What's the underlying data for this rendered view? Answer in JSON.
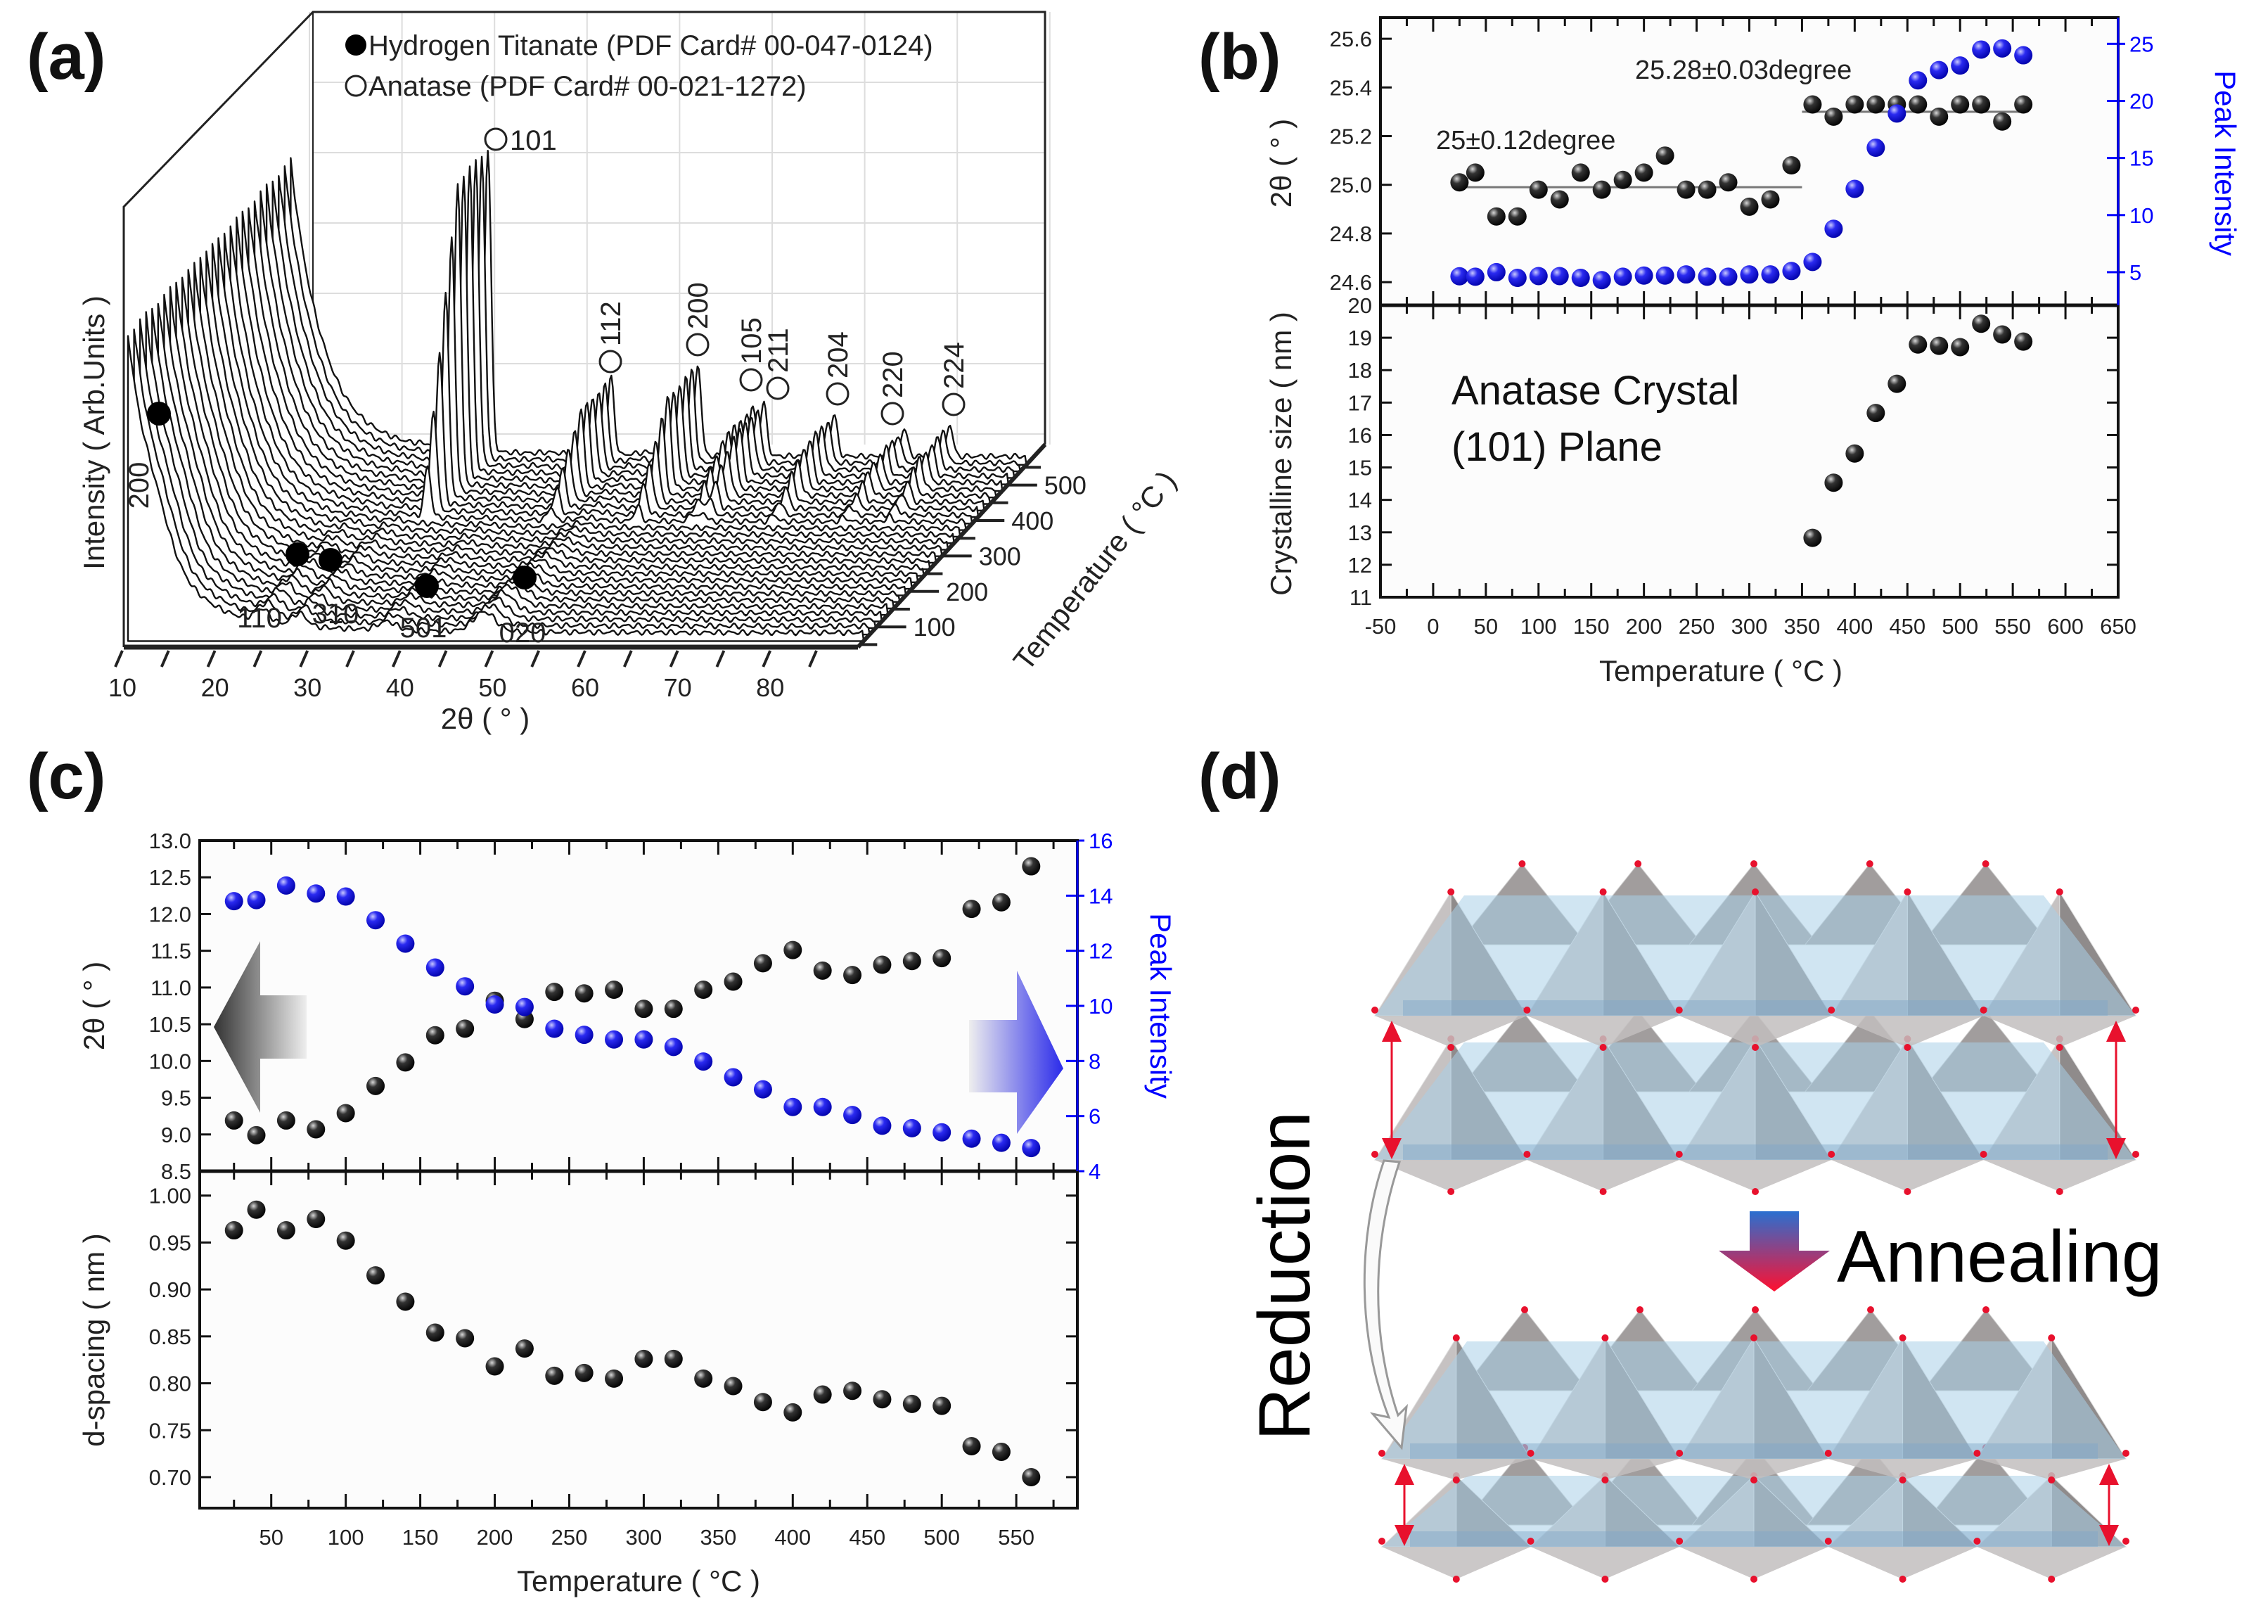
{
  "panel_labels": [
    "(a)",
    "(b)",
    "(c)",
    "(d)"
  ],
  "chart_data": [
    {
      "panel": "(a)",
      "type": "line",
      "subtype": "3d-waterfall",
      "xlabel": "2θ ( ° )",
      "ylabel": "Intensity ( Arb.Units )",
      "zlabel": "Temperature ( °C )",
      "x_ticks": [
        "10",
        "20",
        "30",
        "40",
        "50",
        "60",
        "70",
        "80"
      ],
      "z_ticks": [
        "100",
        "200",
        "300",
        "400",
        "500"
      ],
      "z_values": [
        25,
        40,
        60,
        80,
        100,
        120,
        140,
        160,
        180,
        200,
        220,
        240,
        260,
        280,
        300,
        320,
        340,
        360,
        380,
        400,
        420,
        440,
        460,
        480,
        500,
        520,
        540,
        560
      ],
      "legend": [
        {
          "marker": "filled-circle",
          "label": "Hydrogen Titanate (PDF Card# 00-047-0124)"
        },
        {
          "marker": "open-circle",
          "label": "Anatase (PDF Card# 00-021-1272)"
        }
      ],
      "titanate_peaks": [
        "200",
        "110",
        "310",
        "501",
        "020"
      ],
      "anatase_peaks": [
        "101",
        "112",
        "200",
        "105",
        "211",
        "204",
        "220",
        "224"
      ]
    },
    {
      "panel": "(b)",
      "type": "scatter",
      "xlabel": "Temperature ( °C )",
      "xlim": [
        -50,
        650
      ],
      "x_ticks": [
        "-50",
        "0",
        "50",
        "100",
        "150",
        "200",
        "250",
        "300",
        "350",
        "400",
        "450",
        "500",
        "550",
        "600",
        "650"
      ],
      "x": [
        25,
        40,
        60,
        80,
        100,
        120,
        140,
        160,
        180,
        200,
        220,
        240,
        260,
        280,
        300,
        320,
        340,
        360,
        380,
        400,
        420,
        440,
        460,
        480,
        500,
        520,
        540,
        560
      ],
      "top": {
        "ylabel": "2θ ( ° )",
        "ylim": [
          24.505,
          25.687
        ],
        "y_ticks": [
          "24.6",
          "24.8",
          "25.0",
          "25.2",
          "25.4",
          "25.6"
        ],
        "color": "#000000",
        "values": [
          25.01,
          25.05,
          24.87,
          24.87,
          24.98,
          24.94,
          25.05,
          24.98,
          25.02,
          25.05,
          25.12,
          24.98,
          24.98,
          25.01,
          24.91,
          24.94,
          25.08,
          25.33,
          25.28,
          25.33,
          25.33,
          25.33,
          25.33,
          25.28,
          25.33,
          25.33,
          25.26,
          25.33
        ],
        "right_axis": {
          "ylabel": "Peak Intensity",
          "ylim": [
            2.1,
            27.3
          ],
          "y_ticks": [
            "5",
            "10",
            "15",
            "20",
            "25"
          ],
          "color": "#0000ff",
          "values": [
            4.64,
            4.6,
            5.0,
            4.5,
            4.66,
            4.66,
            4.5,
            4.3,
            4.6,
            4.7,
            4.7,
            4.8,
            4.6,
            4.6,
            4.8,
            4.8,
            5.1,
            5.9,
            8.8,
            12.3,
            15.9,
            18.9,
            21.8,
            22.7,
            23.1,
            24.5,
            24.6,
            24.0
          ]
        },
        "fits": [
          {
            "label": "25±0.12degree",
            "value": 24.99,
            "range": [
              25,
              350
            ]
          },
          {
            "label": "25.28±0.03degree",
            "value": 25.3,
            "range": [
              350,
              560
            ]
          }
        ]
      },
      "bottom": {
        "ylabel": "Crystalline size ( nm )",
        "ylim": [
          11,
          20
        ],
        "y_ticks": [
          "11",
          "12",
          "13",
          "14",
          "15",
          "16",
          "17",
          "18",
          "19",
          "20"
        ],
        "x": [
          360,
          380,
          400,
          420,
          440,
          460,
          480,
          500,
          520,
          540,
          560
        ],
        "values": [
          12.83,
          14.53,
          15.43,
          16.68,
          17.58,
          18.79,
          18.75,
          18.71,
          19.43,
          19.1,
          18.88
        ],
        "annotation": [
          "Anatase Crystal",
          "(101) Plane"
        ]
      }
    },
    {
      "panel": "(c)",
      "type": "scatter",
      "xlabel": "Temperature ( °C )",
      "xlim": [
        2,
        591
      ],
      "x_ticks": [
        "50",
        "100",
        "150",
        "200",
        "250",
        "300",
        "350",
        "400",
        "450",
        "500",
        "550"
      ],
      "x": [
        25,
        40,
        60,
        80,
        100,
        120,
        140,
        160,
        180,
        200,
        220,
        240,
        260,
        280,
        300,
        320,
        340,
        360,
        380,
        400,
        420,
        440,
        460,
        480,
        500,
        520,
        540,
        560
      ],
      "top": {
        "ylabel": "2θ ( ° )",
        "ylim": [
          8.5,
          13.0
        ],
        "y_ticks": [
          "8.5",
          "9.0",
          "9.5",
          "10.0",
          "10.5",
          "11.0",
          "11.5",
          "12.0",
          "12.5",
          "13.0"
        ],
        "color": "#000000",
        "values": [
          9.19,
          8.99,
          9.19,
          9.07,
          9.29,
          9.66,
          9.98,
          10.35,
          10.44,
          10.82,
          10.57,
          10.94,
          10.92,
          10.97,
          10.71,
          10.71,
          10.97,
          11.08,
          11.33,
          11.51,
          11.23,
          11.17,
          11.31,
          11.36,
          11.4,
          12.07,
          12.16,
          12.65
        ],
        "right_axis": {
          "ylabel": "Peak Intensity",
          "ylim": [
            4,
            16
          ],
          "y_ticks": [
            "4",
            "6",
            "8",
            "10",
            "12",
            "14",
            "16"
          ],
          "color": "#0000ff",
          "values": [
            13.8,
            13.84,
            14.37,
            14.08,
            13.97,
            13.11,
            12.26,
            11.39,
            10.71,
            10.05,
            9.96,
            9.17,
            8.95,
            8.78,
            8.78,
            8.51,
            7.98,
            7.41,
            6.97,
            6.33,
            6.33,
            6.04,
            5.65,
            5.56,
            5.41,
            5.18,
            5.03,
            4.84
          ]
        }
      },
      "bottom": {
        "ylabel": "d-spacing ( nm )",
        "ylim": [
          0.667,
          1.026
        ],
        "y_ticks": [
          "0.70",
          "0.75",
          "0.80",
          "0.85",
          "0.90",
          "0.95",
          "1.00"
        ],
        "x": [
          25,
          40,
          60,
          80,
          100,
          120,
          140,
          160,
          180,
          200,
          220,
          240,
          260,
          280,
          300,
          320,
          340,
          360,
          380,
          400,
          420,
          440,
          460,
          480,
          500,
          520,
          540,
          560
        ],
        "values": [
          0.963,
          0.985,
          0.963,
          0.975,
          0.952,
          0.915,
          0.887,
          0.854,
          0.848,
          0.818,
          0.837,
          0.808,
          0.811,
          0.805,
          0.826,
          0.826,
          0.805,
          0.797,
          0.78,
          0.769,
          0.788,
          0.792,
          0.783,
          0.778,
          0.776,
          0.733,
          0.727,
          0.7
        ]
      }
    }
  ],
  "diagram_d": {
    "annealing_label": "Annealing",
    "reduction_label": "Reduction",
    "colors": {
      "octahedron": "#b5b1b1",
      "layer": "#a9cfe8",
      "oxygen": "#e8112d",
      "arrow": "#e8112d"
    }
  }
}
